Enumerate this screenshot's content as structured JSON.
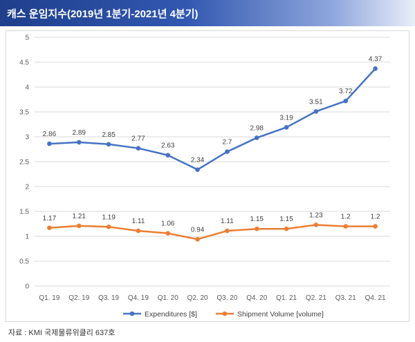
{
  "header": {
    "title": "캐스 운임지수(2019년 1분기-2021년 4분기)"
  },
  "source": "자료 : KMI 국제물류위클리 637호",
  "colors": {
    "expenditures": "#4472c4",
    "shipment": "#ed7d31",
    "grid": "#d9d9d9",
    "banner": "#1f3f8c"
  },
  "chart_data": {
    "type": "line",
    "title": "",
    "xlabel": "",
    "ylabel": "",
    "categories": [
      "Q1. 19",
      "Q2. 19",
      "Q3. 19",
      "Q4. 19",
      "Q1. 20",
      "Q2. 20",
      "Q3. 20",
      "Q4. 20",
      "Q1. 21",
      "Q2. 21",
      "Q3. 21",
      "Q4. 21"
    ],
    "ylim": [
      0,
      5
    ],
    "yticks": [
      0,
      0.5,
      1,
      1.5,
      2,
      2.5,
      3,
      3.5,
      4,
      4.5,
      5
    ],
    "ytick_labels": [
      "0",
      "0.5",
      "1",
      "1.5",
      "2",
      "2.5",
      "3",
      "3.5",
      "4",
      "4.5",
      "5"
    ],
    "grid": true,
    "legend_position": "bottom",
    "series": [
      {
        "name": "Expenditures [$]",
        "values": [
          2.86,
          2.89,
          2.85,
          2.77,
          2.63,
          2.34,
          2.7,
          2.98,
          3.19,
          3.51,
          3.72,
          4.37
        ],
        "labels": [
          "2.86",
          "2.89",
          "2.85",
          "2.77",
          "2.63",
          "2.34",
          "2.7",
          "2.98",
          "3.19",
          "3.51",
          "3.72",
          "4.37"
        ]
      },
      {
        "name": "Shipment Volume [volume]",
        "values": [
          1.17,
          1.21,
          1.19,
          1.11,
          1.06,
          0.94,
          1.11,
          1.15,
          1.15,
          1.23,
          1.2,
          1.2
        ],
        "labels": [
          "1.17",
          "1.21",
          "1.19",
          "1.11",
          "1.06",
          "0.94",
          "1.11",
          "1.15",
          "1.15",
          "1.23",
          "1.2",
          "1.2"
        ]
      }
    ]
  }
}
